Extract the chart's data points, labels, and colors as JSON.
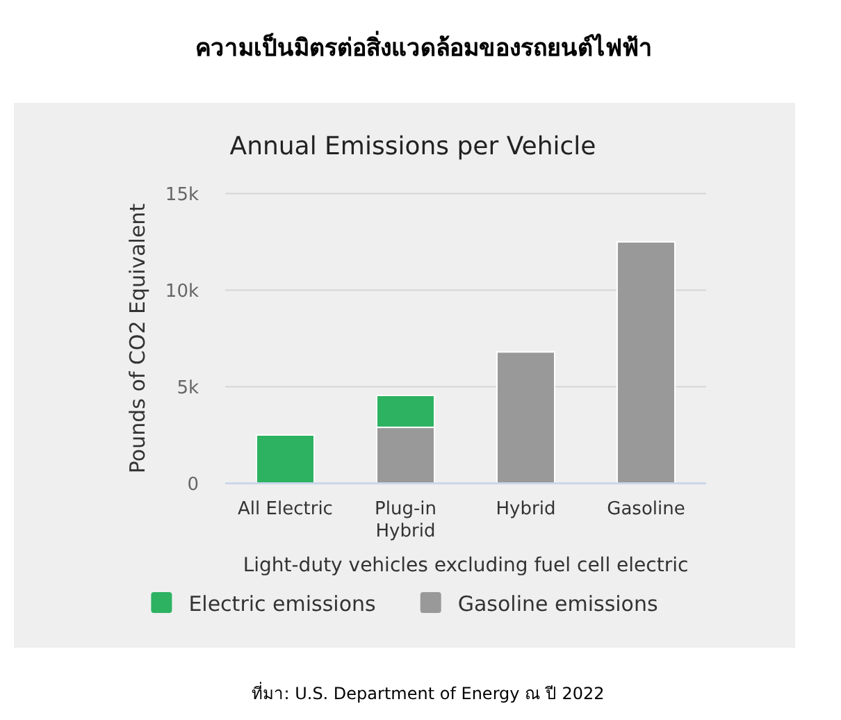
{
  "chart_data": {
    "type": "bar",
    "title": "ความเป็นมิตรต่อสิ่งแวดล้อมของรถยนต์ไฟฟ้า",
    "subtitle": "Annual Emissions per Vehicle",
    "xlabel": "Light-duty vehicles excluding fuel cell electric",
    "ylabel": "Pounds of CO2 Equivalent",
    "categories": [
      "All Electric",
      "Plug-in Hybrid",
      "Hybrid",
      "Gasoline"
    ],
    "series": [
      {
        "name": "Gasoline emissions",
        "color": "#999999",
        "values": [
          null,
          2900,
          6800,
          12500
        ]
      },
      {
        "name": "Electric emissions",
        "color": "#2db262",
        "values": [
          2500,
          1650,
          null,
          null
        ]
      }
    ],
    "stacked": true,
    "ylim": [
      0,
      15000
    ],
    "yticks": [
      0,
      {
        "value": 5000,
        "label": "5k"
      },
      {
        "value": 10000,
        "label": "10k"
      },
      {
        "value": 15000,
        "label": "15k"
      }
    ],
    "grid": "y",
    "legend": "bottom",
    "annotations": [
      "ที่มา: U.S. Department of Energy ณ ปี 2022"
    ]
  }
}
